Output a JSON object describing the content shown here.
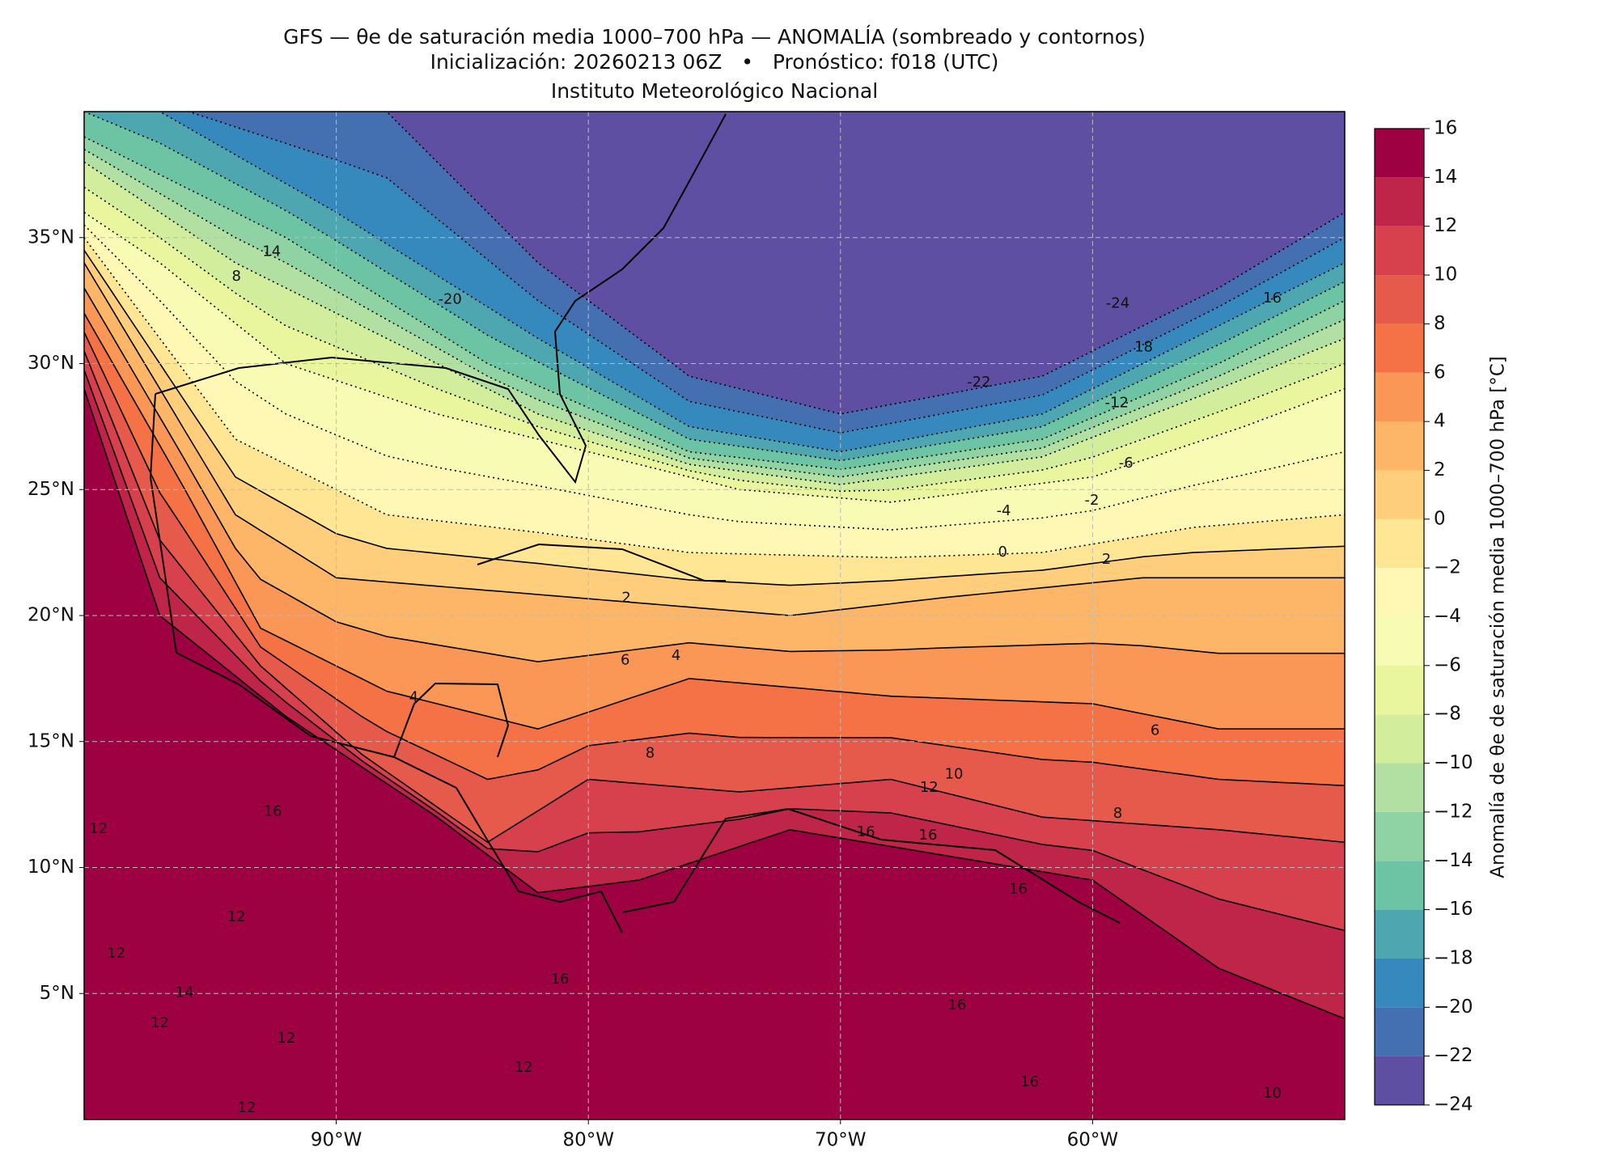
{
  "chart_data": {
    "type": "contour",
    "title": "GFS — θe de saturación media 1000–700 hPa — ANOMALÍA (sombreado y contornos)",
    "subtitle": "Inicialización: 20260213 06Z   •   Pronóstico: f018 (UTC)",
    "institution": "Instituto Meteorológico Nacional",
    "xlim": [
      -100,
      -50
    ],
    "ylim": [
      0,
      40
    ],
    "xticks": [
      {
        "value": -90,
        "label": "90°W"
      },
      {
        "value": -80,
        "label": "80°W"
      },
      {
        "value": -70,
        "label": "70°W"
      },
      {
        "value": -60,
        "label": "60°W"
      }
    ],
    "yticks": [
      {
        "value": 5,
        "label": "5°N"
      },
      {
        "value": 10,
        "label": "10°N"
      },
      {
        "value": 15,
        "label": "15°N"
      },
      {
        "value": 20,
        "label": "20°N"
      },
      {
        "value": 25,
        "label": "25°N"
      },
      {
        "value": 30,
        "label": "30°N"
      },
      {
        "value": 35,
        "label": "35°N"
      }
    ],
    "grid": true,
    "colorbar": {
      "label": "Anomalía de θe de saturación media 1000–700 hPa [°C]",
      "clim": [
        -24,
        16
      ],
      "ticks": [
        {
          "value": -24,
          "label": "−24"
        },
        {
          "value": -22,
          "label": "−22"
        },
        {
          "value": -20,
          "label": "−20"
        },
        {
          "value": -18,
          "label": "−18"
        },
        {
          "value": -16,
          "label": "−16"
        },
        {
          "value": -14,
          "label": "−14"
        },
        {
          "value": -12,
          "label": "−12"
        },
        {
          "value": -10,
          "label": "−10"
        },
        {
          "value": -8,
          "label": "−8"
        },
        {
          "value": -6,
          "label": "−6"
        },
        {
          "value": -4,
          "label": "−4"
        },
        {
          "value": -2,
          "label": "−2"
        },
        0,
        2,
        4,
        6,
        8,
        10,
        12,
        14,
        16
      ],
      "colors": [
        "#5e4fa2",
        "#4470b1",
        "#3589bd",
        "#4da6b0",
        "#6cc4a5",
        "#8fd2a4",
        "#b1e0a2",
        "#d2ed9c",
        "#e9f69d",
        "#f7fbb3",
        "#fff8b4",
        "#fee695",
        "#fece7c",
        "#fdb567",
        "#fa9656",
        "#f47245",
        "#e65a4b",
        "#d7414e",
        "#bf2449",
        "#9e0142"
      ]
    },
    "contour_labels": [
      -20,
      14,
      8,
      -24,
      16,
      18,
      -22,
      -12,
      -6,
      -2,
      -4,
      0,
      2,
      2,
      6,
      4,
      4,
      8,
      10,
      12,
      16,
      12,
      12,
      16,
      16,
      16,
      6,
      8,
      12,
      16,
      16,
      16,
      10,
      12,
      12,
      12,
      12,
      14
    ]
  }
}
